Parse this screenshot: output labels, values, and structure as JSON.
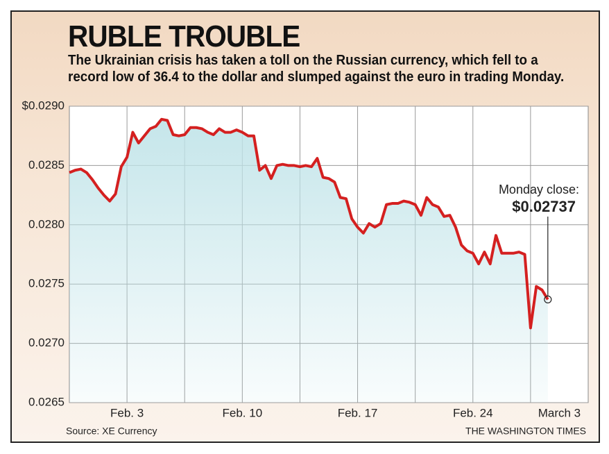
{
  "chart_data": {
    "type": "line",
    "title": "RUBLE TROUBLE",
    "subtitle": "The Ukrainian crisis has taken a toll on the Russian currency, which fell to a record low of 36.4 to the dollar and slumped against the euro in trading Monday.",
    "source": "Source: XE Currency",
    "credit": "THE WASHINGTON TIMES",
    "annotation": "Monday close:",
    "categories": [
      null,
      null,
      null,
      null,
      null,
      null,
      null,
      null,
      null,
      null,
      "Feb. 3",
      null,
      null,
      null,
      null,
      null,
      null,
      null,
      null,
      null,
      null,
      null,
      null,
      null,
      null,
      null,
      null,
      null,
      null,
      null,
      "Feb. 10",
      null,
      null,
      null,
      null,
      null,
      null,
      null,
      null,
      null,
      null,
      null,
      null,
      null,
      null,
      null,
      null,
      null,
      null,
      null,
      "Feb. 17",
      null,
      null,
      null,
      null,
      null,
      null,
      null,
      null,
      null,
      null,
      null,
      null,
      null,
      null,
      null,
      null,
      null,
      null,
      null,
      "Feb. 24",
      null,
      null,
      null,
      null,
      null,
      null,
      null,
      null,
      null,
      null,
      null,
      null,
      null,
      null,
      "March 3"
    ],
    "series": [
      {
        "color": "#d42020",
        "values": [
          0.02844,
          0.02846,
          0.02847,
          0.02844,
          0.02838,
          0.02831,
          0.02825,
          0.0282,
          0.02826,
          0.02849,
          0.02857,
          0.02878,
          0.02869,
          0.02875,
          0.02881,
          0.02883,
          0.02889,
          0.02888,
          0.02876,
          0.02875,
          0.02876,
          0.02882,
          0.02882,
          0.02881,
          0.02878,
          0.02876,
          0.02881,
          0.02878,
          0.02878,
          0.0288,
          0.02878,
          0.02875,
          0.02875,
          0.02846,
          0.0285,
          0.02839,
          0.0285,
          0.02851,
          0.0285,
          0.0285,
          0.02849,
          0.0285,
          0.02849,
          0.02856,
          0.0284,
          0.02839,
          0.02836,
          0.02823,
          0.02822,
          0.02805,
          0.02798,
          0.02793,
          0.02801,
          0.02798,
          0.02801,
          0.02817,
          0.02818,
          0.02818,
          0.0282,
          0.02819,
          0.02817,
          0.02808,
          0.02823,
          0.02817,
          0.02815,
          0.02807,
          0.02808,
          0.02798,
          0.02783,
          0.02778,
          0.02776,
          0.02767,
          0.02777,
          0.02767,
          0.02791,
          0.02776,
          0.02776,
          0.02776,
          0.02777,
          0.02775,
          0.02713,
          0.02748,
          0.02745,
          0.02737,
          null,
          null
        ],
        "value_labels": [
          null,
          null,
          null,
          null,
          null,
          null,
          null,
          null,
          null,
          null,
          null,
          null,
          null,
          null,
          null,
          null,
          null,
          null,
          null,
          null,
          null,
          null,
          null,
          null,
          null,
          null,
          null,
          null,
          null,
          null,
          null,
          null,
          null,
          null,
          null,
          null,
          null,
          null,
          null,
          null,
          null,
          null,
          null,
          null,
          null,
          null,
          null,
          null,
          null,
          null,
          null,
          null,
          null,
          null,
          null,
          null,
          null,
          null,
          null,
          null,
          null,
          null,
          null,
          null,
          null,
          null,
          null,
          null,
          null,
          null,
          null,
          null,
          null,
          null,
          null,
          null,
          null,
          null,
          null,
          null,
          null,
          null,
          null,
          "$0.02737",
          null,
          null
        ]
      }
    ],
    "fill_color": "#bfe3e8",
    "ylim": [
      0.0265,
      0.029
    ],
    "yticks": [
      0.0265,
      {
        "value": 0.027,
        "label": "0.0270"
      },
      0.0275,
      {
        "value": 0.028,
        "label": "0.0280"
      },
      0.0285,
      {
        "value": 0.029,
        "label": "$0.0290"
      }
    ],
    "grid": true
  }
}
